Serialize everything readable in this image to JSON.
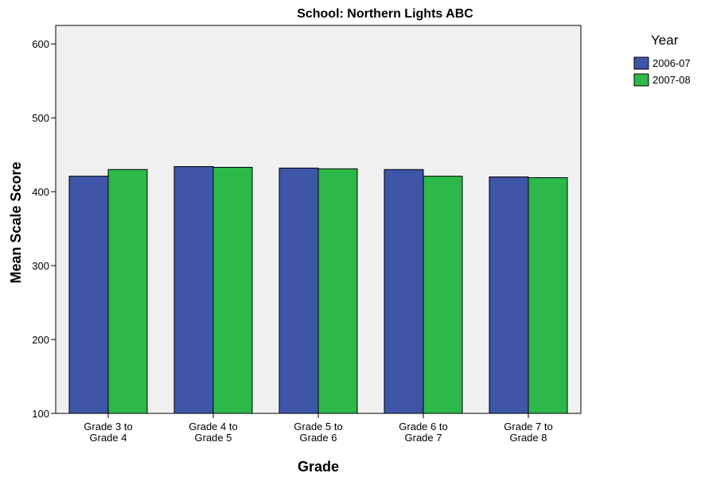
{
  "chart_data": {
    "type": "bar",
    "title": "School: Northern Lights ABC",
    "xlabel": "Grade",
    "ylabel": "Mean Scale Score",
    "ylim": [
      100,
      625
    ],
    "yticks": [
      100,
      200,
      300,
      400,
      500,
      600
    ],
    "categories": [
      [
        "Grade 3 to",
        "Grade 4"
      ],
      [
        "Grade 4 to",
        "Grade 5"
      ],
      [
        "Grade 5 to",
        "Grade 6"
      ],
      [
        "Grade 6 to",
        "Grade 7"
      ],
      [
        "Grade 7 to",
        "Grade 8"
      ]
    ],
    "series": [
      {
        "name": "2006-07",
        "color": "#3f56a8",
        "values": [
          421,
          434,
          432,
          430,
          420
        ]
      },
      {
        "name": "2007-08",
        "color": "#2db84a",
        "values": [
          430,
          433,
          431,
          421,
          419
        ]
      }
    ],
    "legend": {
      "title": "Year",
      "position": "top-right"
    },
    "plot_background": "#f0f0f0",
    "grid": false
  }
}
